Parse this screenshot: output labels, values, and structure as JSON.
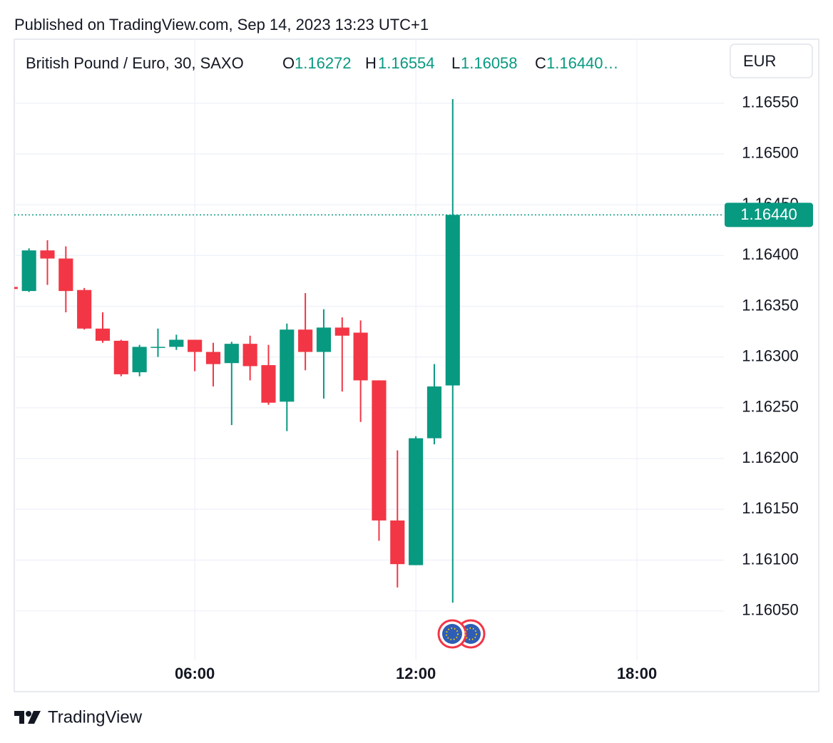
{
  "published": "Published on TradingView.com, Sep 14, 2023 13:23 UTC+1",
  "brand": "TradingView",
  "chart_data": {
    "type": "candlestick",
    "title": "British Pound / Euro, 30, SAXO",
    "ohlc_header": [
      {
        "label": "O",
        "value": "1.16272"
      },
      {
        "label": "H",
        "value": "1.16554"
      },
      {
        "label": "L",
        "value": "1.16058"
      },
      {
        "label": "C",
        "value": "1.16440…"
      }
    ],
    "currency": "EUR",
    "up_color": "#089981",
    "down_color": "#f23645",
    "x": [
      1,
      1.5,
      2,
      2.5,
      3,
      3.5,
      4,
      4.5,
      5,
      5.5,
      6,
      6.5,
      7,
      7.5,
      8,
      8.5,
      9,
      9.5,
      10,
      10.5,
      11,
      11.5,
      12,
      12.5,
      13
    ],
    "open": [
      1.16369,
      1.16365,
      1.16405,
      1.16397,
      1.16366,
      1.16328,
      1.16316,
      1.16285,
      1.16309,
      1.1631,
      1.16317,
      1.16305,
      1.16294,
      1.16313,
      1.16292,
      1.16256,
      1.16327,
      1.16305,
      1.16329,
      1.16324,
      1.16277,
      1.16139,
      1.16095,
      1.1622,
      1.16272
    ],
    "high": [
      1.16369,
      1.16407,
      1.16415,
      1.16409,
      1.16368,
      1.16344,
      1.16317,
      1.16312,
      1.16328,
      1.16322,
      1.16317,
      1.16314,
      1.16315,
      1.16321,
      1.16312,
      1.16333,
      1.16363,
      1.16347,
      1.16339,
      1.16336,
      1.16277,
      1.16208,
      1.16222,
      1.16293,
      1.16554
    ],
    "low": [
      1.16367,
      1.16364,
      1.16371,
      1.16344,
      1.16327,
      1.16314,
      1.16281,
      1.16281,
      1.163,
      1.16307,
      1.16286,
      1.16271,
      1.16233,
      1.16277,
      1.16253,
      1.16227,
      1.16287,
      1.16259,
      1.16266,
      1.16236,
      1.16119,
      1.16073,
      1.16095,
      1.16214,
      1.16058
    ],
    "close": [
      1.16367,
      1.16405,
      1.16397,
      1.16365,
      1.16328,
      1.16316,
      1.16283,
      1.1631,
      1.1631,
      1.16317,
      1.16305,
      1.16293,
      1.16313,
      1.16291,
      1.16255,
      1.16327,
      1.16305,
      1.16329,
      1.16321,
      1.16277,
      1.16139,
      1.16096,
      1.1622,
      1.16271,
      1.1644
    ],
    "last_price": {
      "value": 1.1644,
      "label": "1.16440"
    },
    "xlim": [
      1.1,
      20.36
    ],
    "ylim": [
      1.16002,
      1.16613
    ],
    "xticks": [
      {
        "value": 6,
        "label": "06:00"
      },
      {
        "value": 12,
        "label": "12:00"
      },
      {
        "value": 18,
        "label": "18:00"
      }
    ],
    "yticks": [
      {
        "value": 1.1605,
        "label": "1.16050"
      },
      {
        "value": 1.161,
        "label": "1.16100"
      },
      {
        "value": 1.1615,
        "label": "1.16150"
      },
      {
        "value": 1.162,
        "label": "1.16200"
      },
      {
        "value": 1.1625,
        "label": "1.16250"
      },
      {
        "value": 1.163,
        "label": "1.16300"
      },
      {
        "value": 1.1635,
        "label": "1.16350"
      },
      {
        "value": 1.164,
        "label": "1.16400"
      },
      {
        "value": 1.1645,
        "label": "1.16450"
      },
      {
        "value": 1.165,
        "label": "1.16500"
      },
      {
        "value": 1.1655,
        "label": "1.16550"
      }
    ],
    "grid": true
  }
}
